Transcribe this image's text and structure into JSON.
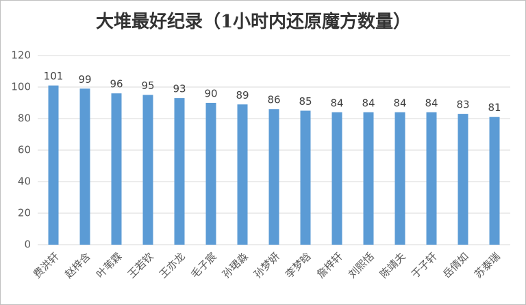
{
  "chart_data": {
    "type": "bar",
    "title": "大堆最好纪录（1小时内还原魔方数量）",
    "categories": [
      "费洪轩",
      "赵梓含",
      "叶苇霖",
      "王若钦",
      "王亦龙",
      "毛子宸",
      "孙珺淼",
      "孙梦妍",
      "李梦晗",
      "詹梓轩",
      "刘熙恬",
      "陈靖夫",
      "于子轩",
      "岳倩如",
      "苏泰瑞"
    ],
    "values": [
      101,
      99,
      96,
      95,
      93,
      90,
      89,
      86,
      85,
      84,
      84,
      84,
      84,
      83,
      81
    ],
    "color": "#5b9bd5",
    "ylim": [
      0,
      120
    ],
    "yticks": [
      0,
      20,
      40,
      60,
      80,
      100,
      120
    ],
    "grid": true
  }
}
